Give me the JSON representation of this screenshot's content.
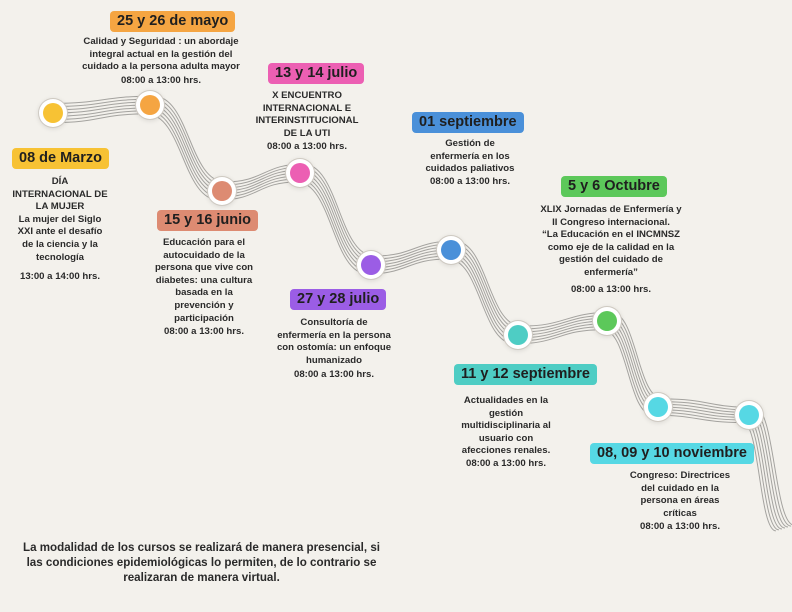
{
  "colors": {
    "road_lines": "#8a8885",
    "marzo": "#f7c234",
    "mayo": "#f5a542",
    "junio": "#dd8b72",
    "julio13": "#ec5fb3",
    "julio27": "#9b5de5",
    "sep01": "#4a90d9",
    "sep11": "#4ecdc4",
    "octubre": "#5cc85a",
    "noviembre": "#56d8e4"
  },
  "events": {
    "marzo": {
      "date": "08 de Marzo",
      "desc": "DÍA\nINTERNACIONAL DE\nLA MUJER\nLa mujer del Siglo\nXXI ante el desafío\nde la ciencia y la\ntecnología",
      "time": "13:00 a 14:00 hrs."
    },
    "mayo": {
      "date": "25 y 26 de mayo",
      "desc": "Calidad y Seguridad :  un abordaje\nintegral actual en la gestión del\ncuidado a la persona adulta mayor",
      "time": "08:00 a 13:00 hrs."
    },
    "junio": {
      "date": "15 y 16 junio",
      "desc": "Educación para el\nautocuidado de la\npersona que vive con\ndiabetes: una cultura\nbasada en la\nprevención y\nparticipación",
      "time": "08:00 a 13:00 hrs."
    },
    "julio13": {
      "date": "13 y 14 julio",
      "desc": "X  ENCUENTRO\nINTERNACIONAL E\nINTERINSTITUCIONAL\nDE LA UTI",
      "time": "08:00 a 13:00 hrs."
    },
    "julio27": {
      "date": "27 y 28 julio",
      "desc": "Consultoría de\nenfermería en la persona\ncon ostomía: un enfoque\nhumanizado",
      "time": "08:00 a 13:00 hrs."
    },
    "sep01": {
      "date": "01 septiembre",
      "desc": "Gestión de\nenfermería en los\ncuidados paliativos",
      "time": "08:00 a 13:00 hrs."
    },
    "sep11": {
      "date": "11 y 12 septiembre",
      "desc": "Actualidades en la\ngestión\nmultidisciplinaria al\nusuario con\nafecciones renales.",
      "time": "08:00 a 13:00 hrs."
    },
    "octubre": {
      "date": "5 y 6 Octubre",
      "desc": "XLIX Jornadas de Enfermería y\nII Congreso internacional.\n“La Educación en el INCMNSZ\ncomo eje de la calidad en la\ngestión del cuidado de\nenfermería”",
      "time": "08:00 a 13:00 hrs."
    },
    "noviembre": {
      "date": "08, 09 y 10 noviembre",
      "desc": "Congreso: Directrices\ndel cuidado en la\npersona en áreas\ncríticas",
      "time": "08:00 a 13:00 hrs."
    }
  },
  "footer_note": "La modalidad de los cursos se realizará de manera presencial, si las condiciones epidemiológicas lo permiten, de lo contrario se realizaran de manera virtual."
}
